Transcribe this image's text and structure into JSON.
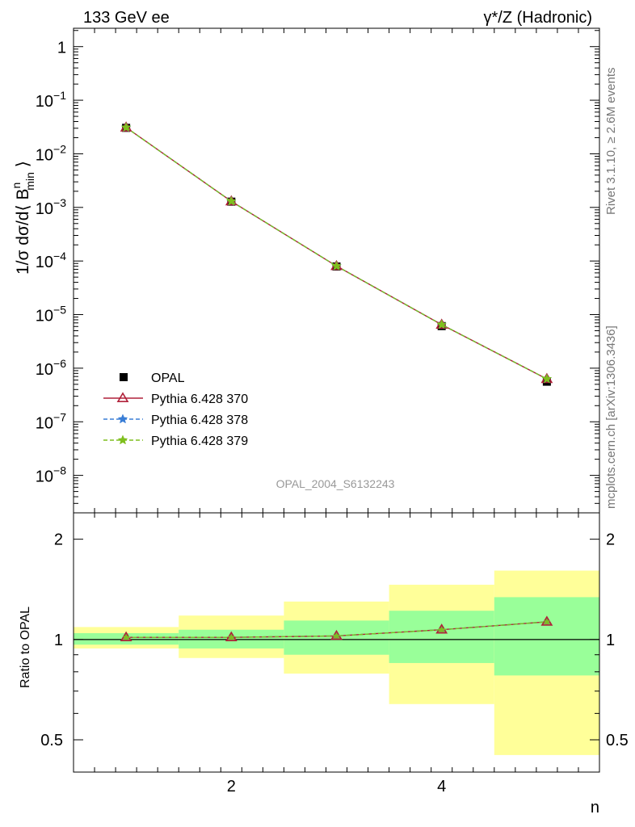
{
  "header": {
    "left_title": "133 GeV ee",
    "right_title": "γ*/Z (Hadronic)"
  },
  "side_labels": {
    "rivet": "Rivet 3.1.10, ≥ 2.6M events",
    "mcplots": "mcplots.cern.ch [arXiv:1306.3436]"
  },
  "analysis_label": "OPAL_2004_S6132243",
  "colors": {
    "data": "#000000",
    "p370": "#b0213a",
    "p378": "#3a7ed6",
    "p379": "#7fbf1e",
    "band_inner": "#99ff99",
    "band_outer": "#ffff99"
  },
  "chart_data": [
    {
      "type": "scatter",
      "panel": "main",
      "ylabel": "1/σ dσ/d⟨ B^n_min ⟩",
      "yscale": "log",
      "ylim": [
        2e-09,
        2.2
      ],
      "xlim": [
        0.5,
        5.5
      ],
      "yticks": [
        1,
        0.1,
        0.01,
        0.001,
        0.0001,
        1e-05,
        1e-06,
        1e-07,
        1e-08
      ],
      "ytick_labels": [
        {
          "base": "1",
          "exp": ""
        },
        {
          "base": "10",
          "exp": "−1"
        },
        {
          "base": "10",
          "exp": "−2"
        },
        {
          "base": "10",
          "exp": "−3"
        },
        {
          "base": "10",
          "exp": "−4"
        },
        {
          "base": "10",
          "exp": "−5"
        },
        {
          "base": "10",
          "exp": "−6"
        },
        {
          "base": "10",
          "exp": "−7"
        },
        {
          "base": "10",
          "exp": "−8"
        }
      ],
      "x": [
        1,
        2,
        3,
        4,
        5
      ],
      "series": [
        {
          "name": "OPAL",
          "style": "data",
          "values": [
            0.0305,
            0.00128,
            7.9e-05,
            6.1e-06,
            5.6e-07
          ]
        },
        {
          "name": "Pythia 6.428 370",
          "style": "p370",
          "values": [
            0.031,
            0.0013,
            8.05e-05,
            6.5e-06,
            6.3e-07
          ]
        },
        {
          "name": "Pythia 6.428 378",
          "style": "p378",
          "values": [
            0.031,
            0.0013,
            8.05e-05,
            6.5e-06,
            6.3e-07
          ]
        },
        {
          "name": "Pythia 6.428 379",
          "style": "p379",
          "values": [
            0.031,
            0.0013,
            8.05e-05,
            6.5e-06,
            6.3e-07
          ]
        }
      ]
    },
    {
      "type": "line",
      "panel": "ratio",
      "ylabel": "Ratio to OPAL",
      "xlabel": "n",
      "yscale": "log",
      "ylim": [
        0.4,
        2.4
      ],
      "xlim": [
        0.5,
        5.5
      ],
      "yticks": [
        0.5,
        1,
        2
      ],
      "ytick_labels": [
        "0.5",
        "1",
        "2"
      ],
      "xticks": [
        2,
        4
      ],
      "xtick_labels": [
        "2",
        "4"
      ],
      "bins": [
        [
          0.5,
          1.5
        ],
        [
          1.5,
          2.5
        ],
        [
          2.5,
          3.5
        ],
        [
          3.5,
          4.5
        ],
        [
          4.5,
          5.5
        ]
      ],
      "band_inner": [
        [
          0.965,
          1.045
        ],
        [
          0.94,
          1.07
        ],
        [
          0.9,
          1.14
        ],
        [
          0.85,
          1.22
        ],
        [
          0.78,
          1.34
        ]
      ],
      "band_outer": [
        [
          0.94,
          1.09
        ],
        [
          0.88,
          1.18
        ],
        [
          0.79,
          1.3
        ],
        [
          0.64,
          1.46
        ],
        [
          0.45,
          1.61
        ]
      ],
      "x": [
        1,
        2,
        3,
        4,
        5
      ],
      "series": [
        {
          "name": "Pythia 6.428 370",
          "style": "p370",
          "values": [
            1.015,
            1.015,
            1.025,
            1.07,
            1.13
          ]
        },
        {
          "name": "Pythia 6.428 378",
          "style": "p378",
          "values": [
            1.015,
            1.015,
            1.025,
            1.07,
            1.13
          ]
        },
        {
          "name": "Pythia 6.428 379",
          "style": "p379",
          "values": [
            1.015,
            1.015,
            1.025,
            1.07,
            1.13
          ]
        }
      ]
    }
  ]
}
